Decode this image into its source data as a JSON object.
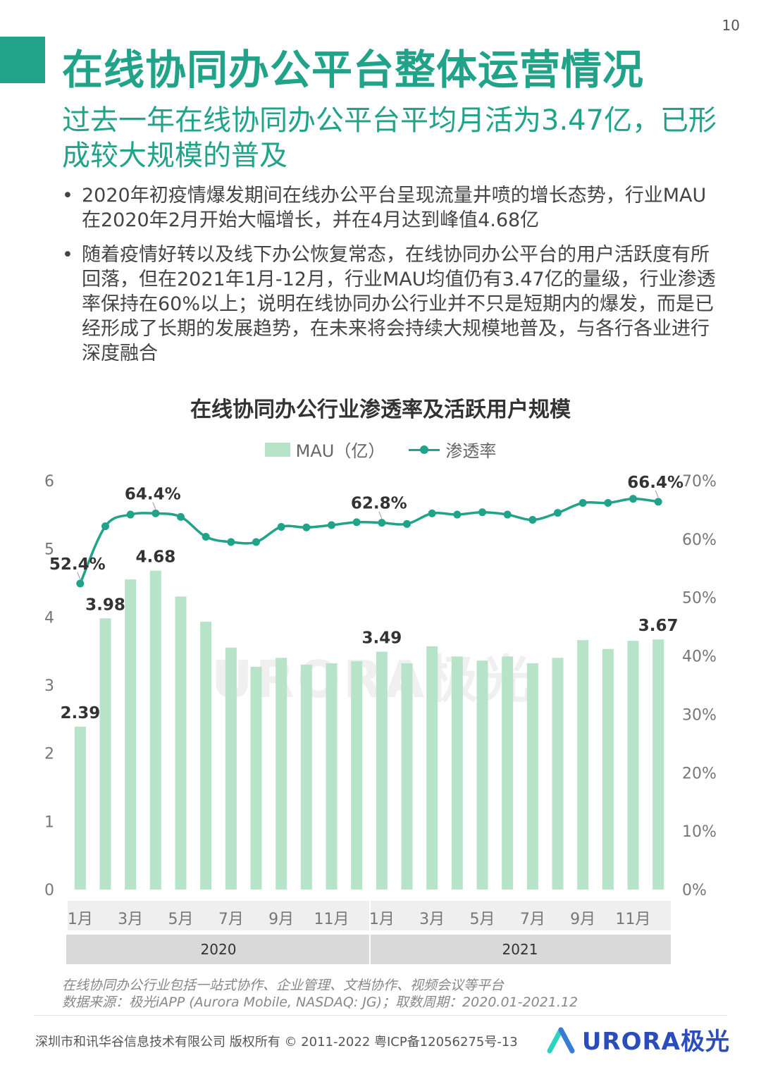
{
  "page": {
    "number": "10"
  },
  "title": "在线协同办公平台整体运营情况",
  "subtitle": "过去一年在线协同办公平台平均月活为3.47亿，已形成较大规模的普及",
  "bullets": [
    "2020年初疫情爆发期间在线办公平台呈现流量井喷的增长态势，行业MAU在2020年2月开始大幅增长，并在4月达到峰值4.68亿",
    "随着疫情好转以及线下办公恢复常态，在线协同办公平台的用户活跃度有所回落，但在2021年1月-12月，行业MAU均值仍有3.47亿的量级，行业渗透率保持在60%以上；说明在线协同办公行业并不只是短期内的爆发，而是已经形成了长期的发展趋势，在未来将会持续大规模地普及，与各行各业进行深度融合"
  ],
  "bullet_symbol": "•",
  "colors": {
    "accent": "#21a38a",
    "bar": "#b7e3c8",
    "brand": "#2a4dbb"
  },
  "chart_data": {
    "type": "bar+line",
    "title": "在线协同办公行业渗透率及活跃用户规模",
    "legend": [
      "MAU（亿）",
      "渗透率"
    ],
    "categories": [
      "1月",
      "2月",
      "3月",
      "4月",
      "5月",
      "6月",
      "7月",
      "8月",
      "9月",
      "10月",
      "11月",
      "12月",
      "1月",
      "2月",
      "3月",
      "4月",
      "5月",
      "6月",
      "7月",
      "8月",
      "9月",
      "10月",
      "11月",
      "12月"
    ],
    "x_tick_labels": [
      "1月",
      "",
      "3月",
      "",
      "5月",
      "",
      "7月",
      "",
      "9月",
      "",
      "11月",
      "",
      "1月",
      "",
      "3月",
      "",
      "5月",
      "",
      "7月",
      "",
      "9月",
      "",
      "11月",
      ""
    ],
    "groups": [
      {
        "label": "2020",
        "from": 0,
        "to": 11
      },
      {
        "label": "2021",
        "from": 12,
        "to": 23
      }
    ],
    "series": [
      {
        "name": "MAU（亿）",
        "type": "bar",
        "axis": "left",
        "values": [
          2.39,
          3.98,
          4.55,
          4.68,
          4.3,
          3.93,
          3.55,
          3.27,
          3.4,
          3.3,
          3.32,
          3.35,
          3.49,
          3.32,
          3.57,
          3.42,
          3.36,
          3.42,
          3.32,
          3.4,
          3.66,
          3.53,
          3.65,
          3.67
        ]
      },
      {
        "name": "渗透率",
        "type": "line",
        "axis": "right",
        "values": [
          52.4,
          62.2,
          64.2,
          64.4,
          63.8,
          60.4,
          59.5,
          59.5,
          62.1,
          62.0,
          62.4,
          62.9,
          62.8,
          62.6,
          64.4,
          64.2,
          64.6,
          64.2,
          63.3,
          64.5,
          66.2,
          66.2,
          66.9,
          66.4
        ]
      }
    ],
    "bar_labels": [
      {
        "index": 0,
        "text": "2.39"
      },
      {
        "index": 1,
        "text": "3.98"
      },
      {
        "index": 3,
        "text": "4.68"
      },
      {
        "index": 12,
        "text": "3.49"
      },
      {
        "index": 23,
        "text": "3.67"
      }
    ],
    "line_labels": [
      {
        "index": 0,
        "text": "52.4%"
      },
      {
        "index": 3,
        "text": "64.4%"
      },
      {
        "index": 12,
        "text": "62.8%"
      },
      {
        "index": 23,
        "text": "66.4%"
      }
    ],
    "y_left": {
      "min": 0,
      "max": 6,
      "ticks": [
        "0",
        "1",
        "2",
        "3",
        "4",
        "5",
        "6"
      ]
    },
    "y_right": {
      "min": 0,
      "max": 70,
      "ticks": [
        "0%",
        "10%",
        "20%",
        "30%",
        "40%",
        "50%",
        "60%",
        "70%"
      ]
    }
  },
  "watermark": "URORA极光",
  "notes": [
    "在线协同办公行业包括一站式协作、企业管理、文档协作、视频会议等平台",
    "数据来源：极光iAPP (Aurora Mobile, NASDAQ: JG)；取数周期：2020.01-2021.12"
  ],
  "footer": "深圳市和讯华谷信息技术有限公司 版权所有 © 2011-2022 粤ICP备12056275号-13",
  "brand": "URORA极光"
}
